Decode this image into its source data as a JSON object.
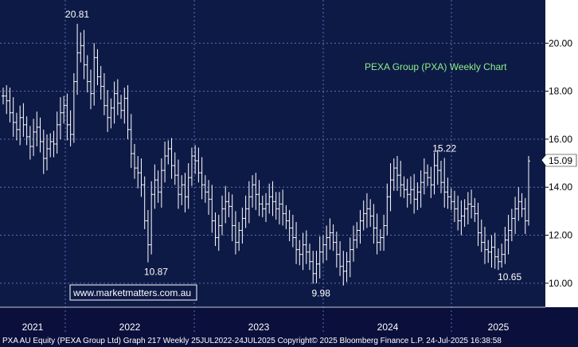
{
  "chart_data": {
    "type": "ohlc",
    "title": "PEXA Group (PXA) Weekly Chart",
    "watermark": "www.marketmatters.com.au",
    "footer": "PXA AU Equity (PEXA Group Ltd) Graph 217  Weekly 25JUL2022-24JUL2025  Copyright© 2025 Bloomberg Finance L.P.  24-Jul-2025 16:38:58",
    "ylim": [
      9,
      21.8
    ],
    "y_ticks": [
      "10.00",
      "12.00",
      "14.00",
      "16.00",
      "18.00",
      "20.00"
    ],
    "x_labels": [
      "2021",
      "2022",
      "2023",
      "2024",
      "2025"
    ],
    "annotations": [
      {
        "text": "20.81",
        "value": 20.81
      },
      {
        "text": "10.87",
        "value": 10.87
      },
      {
        "text": "9.98",
        "value": 9.98
      },
      {
        "text": "15.22",
        "value": 15.22
      },
      {
        "text": "10.65",
        "value": 10.65
      }
    ],
    "last_price": "15.09",
    "colors": {
      "background": "#0a0f3c",
      "plot": "#0e1a46",
      "grid": "#5a6fb4",
      "bars": "#ffffff",
      "axis_panel": "#ffffff",
      "title": "#8cf08c"
    },
    "closes": [
      17.8,
      17.6,
      17.1,
      16.7,
      16.4,
      16.9,
      16.6,
      16.1,
      15.7,
      16.3,
      16.5,
      15.9,
      15.2,
      15.6,
      15.9,
      15.8,
      16.6,
      17.1,
      17.4,
      16.6,
      16.2,
      18.4,
      19.6,
      19.9,
      19.1,
      18.4,
      17.9,
      19.4,
      18.6,
      18.2,
      17.4,
      16.9,
      17.3,
      17.9,
      17.5,
      17.2,
      17.7,
      16.4,
      15.4,
      14.8,
      14.6,
      14.1,
      12.6,
      11.6,
      13.7,
      14.3,
      13.8,
      14.7,
      15.3,
      15.6,
      14.9,
      14.5,
      13.7,
      14.1,
      13.6,
      14.4,
      15.3,
      15.1,
      14.6,
      14.1,
      13.8,
      13.5,
      12.6,
      11.9,
      12.4,
      13.1,
      13.4,
      13.2,
      12.4,
      11.7,
      12.2,
      12.7,
      13.1,
      13.6,
      14.1,
      13.7,
      13.3,
      13.1,
      13.3,
      13.6,
      13.4,
      13.1,
      13.3,
      12.9,
      12.6,
      12.3,
      11.9,
      11.4,
      11.2,
      11.6,
      11.3,
      10.9,
      10.4,
      10.8,
      11.3,
      11.6,
      11.9,
      12.1,
      11.7,
      11.2,
      10.7,
      10.5,
      10.9,
      11.4,
      11.8,
      12.2,
      12.6,
      12.9,
      13.1,
      12.8,
      12.3,
      11.7,
      11.9,
      12.4,
      13.6,
      14.3,
      14.8,
      14.5,
      14.1,
      13.9,
      13.7,
      13.9,
      13.5,
      13.8,
      14.2,
      14.6,
      14.4,
      14.1,
      14.9,
      14.7,
      14.2,
      13.8,
      13.6,
      13.4,
      13.1,
      12.6,
      12.8,
      13.1,
      13.3,
      13.2,
      12.9,
      12.1,
      11.7,
      11.4,
      11.3,
      11.5,
      11.1,
      10.9,
      11.2,
      11.8,
      12.2,
      12.7,
      13.1,
      13.4,
      13.1,
      12.6,
      15.09
    ]
  }
}
